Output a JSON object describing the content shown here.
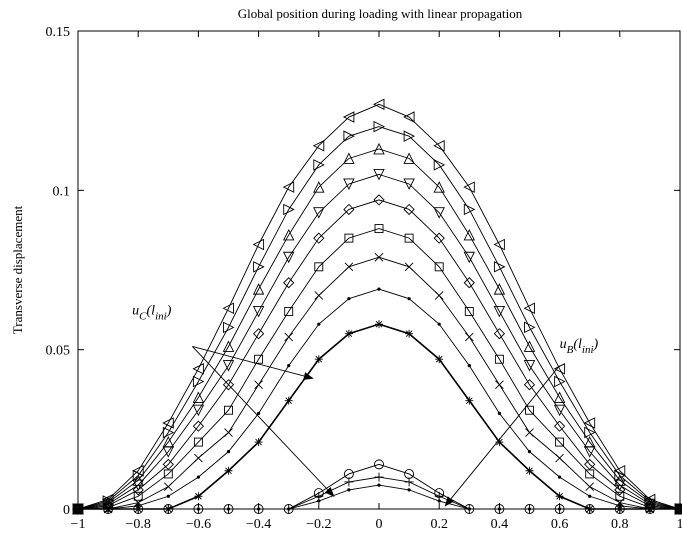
{
  "chart_data": {
    "type": "line",
    "title": "Global position during loading with linear propagation",
    "xlabel": "",
    "ylabel": "Transverse displacement",
    "xlim": [
      -1,
      1
    ],
    "ylim": [
      0,
      0.15
    ],
    "xticks": [
      -1,
      -0.8,
      -0.6,
      -0.4,
      -0.2,
      0,
      0.2,
      0.4,
      0.6,
      0.8,
      1
    ],
    "xtick_labels": [
      "−1",
      "−0.8",
      "−0.6",
      "−0.4",
      "−0.2",
      "0",
      "0.2",
      "0.4",
      "0.6",
      "0.8",
      "1"
    ],
    "yticks": [
      0,
      0.05,
      0.1,
      0.15
    ],
    "ytick_labels": [
      "0",
      "0.05",
      "0.1",
      "0.15"
    ],
    "grid": false,
    "legend": "none",
    "x": [
      -1,
      -0.9,
      -0.8,
      -0.7,
      -0.6,
      -0.5,
      -0.4,
      -0.3,
      -0.2,
      -0.1,
      0,
      0.1,
      0.2,
      0.3,
      0.4,
      0.5,
      0.6,
      0.7,
      0.8,
      0.9,
      1
    ],
    "series": [
      {
        "marker": "triangle-left",
        "values": [
          0,
          0.003,
          0.012,
          0.027,
          0.044,
          0.063,
          0.083,
          0.101,
          0.114,
          0.123,
          0.127,
          0.123,
          0.114,
          0.101,
          0.083,
          0.063,
          0.044,
          0.027,
          0.012,
          0.003,
          0
        ]
      },
      {
        "marker": "triangle-right",
        "values": [
          0,
          0.0025,
          0.0105,
          0.024,
          0.04,
          0.057,
          0.076,
          0.094,
          0.108,
          0.117,
          0.12,
          0.117,
          0.108,
          0.094,
          0.076,
          0.057,
          0.04,
          0.024,
          0.0105,
          0.0025,
          0
        ]
      },
      {
        "marker": "triangle-up",
        "values": [
          0,
          0.002,
          0.009,
          0.021,
          0.035,
          0.051,
          0.069,
          0.086,
          0.101,
          0.11,
          0.113,
          0.11,
          0.101,
          0.086,
          0.069,
          0.051,
          0.035,
          0.021,
          0.009,
          0.002,
          0
        ]
      },
      {
        "marker": "triangle-down",
        "values": [
          0,
          0.0015,
          0.0075,
          0.018,
          0.031,
          0.045,
          0.062,
          0.079,
          0.093,
          0.102,
          0.105,
          0.102,
          0.093,
          0.079,
          0.062,
          0.045,
          0.031,
          0.018,
          0.0075,
          0.0015,
          0
        ]
      },
      {
        "marker": "diamond",
        "values": [
          0,
          0.001,
          0.006,
          0.014,
          0.026,
          0.039,
          0.055,
          0.071,
          0.085,
          0.094,
          0.097,
          0.094,
          0.085,
          0.071,
          0.055,
          0.039,
          0.026,
          0.014,
          0.006,
          0.001,
          0
        ]
      },
      {
        "marker": "square",
        "values": [
          0,
          0.0005,
          0.004,
          0.011,
          0.021,
          0.031,
          0.047,
          0.062,
          0.076,
          0.085,
          0.088,
          0.085,
          0.076,
          0.062,
          0.047,
          0.031,
          0.021,
          0.011,
          0.004,
          0.0005,
          0
        ]
      },
      {
        "marker": "x",
        "values": [
          0,
          0,
          0.002,
          0.007,
          0.016,
          0.024,
          0.039,
          0.054,
          0.067,
          0.076,
          0.079,
          0.076,
          0.067,
          0.054,
          0.039,
          0.024,
          0.016,
          0.007,
          0.002,
          0,
          0
        ]
      },
      {
        "marker": "dot",
        "values": [
          0,
          0,
          0.001,
          0.004,
          0.01,
          0.018,
          0.03,
          0.045,
          0.058,
          0.066,
          0.069,
          0.066,
          0.058,
          0.045,
          0.03,
          0.018,
          0.01,
          0.004,
          0.001,
          0,
          0
        ]
      },
      {
        "marker": "star",
        "values": [
          0,
          0,
          0,
          0,
          0.004,
          0.012,
          0.021,
          0.034,
          0.047,
          0.055,
          0.058,
          0.055,
          0.047,
          0.034,
          0.021,
          0.012,
          0.004,
          0,
          0,
          0,
          0
        ]
      },
      {
        "marker": "circle",
        "values": [
          0,
          0,
          0,
          0,
          0,
          0,
          0,
          0,
          0.005,
          0.011,
          0.014,
          0.011,
          0.005,
          0,
          0,
          0,
          0,
          0,
          0,
          0,
          0
        ]
      },
      {
        "marker": "plus",
        "values": [
          0,
          0,
          0,
          0,
          0,
          0,
          0,
          0,
          0.004,
          0.0085,
          0.01,
          0.0085,
          0.004,
          0,
          0,
          0,
          0,
          0,
          0,
          0,
          0
        ]
      },
      {
        "marker": "dot",
        "values": [
          0,
          0,
          0,
          0,
          0,
          0,
          0,
          0,
          0.0025,
          0.006,
          0.0075,
          0.006,
          0.0025,
          0,
          0,
          0,
          0,
          0,
          0,
          0,
          0
        ]
      }
    ],
    "annotations": [
      {
        "main": "u",
        "sub": "C",
        "paren": "(l",
        "sub2": "ini",
        "close": ")",
        "label_x": -0.82,
        "label_y": 0.061,
        "arrows": [
          {
            "from": [
              -0.62,
              0.051
            ],
            "to": [
              -0.22,
              0.041
            ]
          },
          {
            "from": [
              -0.62,
              0.051
            ],
            "to": [
              -0.15,
              0.004
            ]
          }
        ]
      },
      {
        "main": "u",
        "sub": "B",
        "paren": "(l",
        "sub2": "ini",
        "close": ")",
        "label_x": 0.6,
        "label_y": 0.0505,
        "arrows": [
          {
            "from": [
              0.6,
              0.045
            ],
            "to": [
              0.22,
              0.001
            ]
          }
        ]
      }
    ]
  }
}
